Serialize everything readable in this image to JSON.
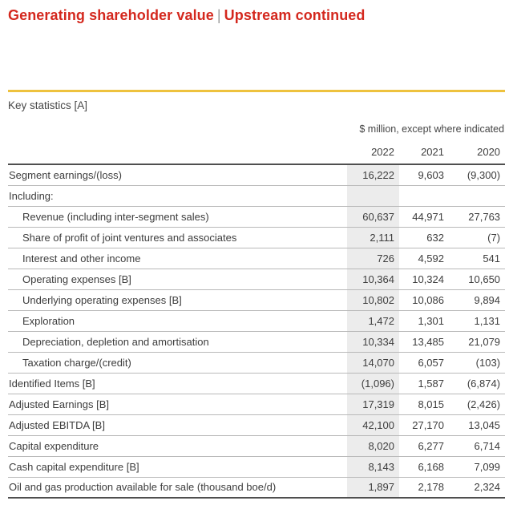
{
  "header": {
    "title_left": "Generating shareholder value",
    "separator": "|",
    "title_right": "Upstream continued"
  },
  "section": {
    "title": "Key statistics [A]"
  },
  "table": {
    "unit_note": "$ million, except where indicated",
    "columns": [
      "2022",
      "2021",
      "2020"
    ],
    "highlighted_column": "2022",
    "rows": [
      {
        "label": "Segment earnings/(loss)",
        "indent": false,
        "values": [
          "16,222",
          "9,603",
          "(9,300)"
        ]
      },
      {
        "label": "Including:",
        "indent": false,
        "values": [
          "",
          "",
          ""
        ]
      },
      {
        "label": "Revenue (including inter-segment sales)",
        "indent": true,
        "values": [
          "60,637",
          "44,971",
          "27,763"
        ]
      },
      {
        "label": "Share of profit of joint ventures and associates",
        "indent": true,
        "values": [
          "2,111",
          "632",
          "(7)"
        ]
      },
      {
        "label": "Interest and other income",
        "indent": true,
        "values": [
          "726",
          "4,592",
          "541"
        ]
      },
      {
        "label": "Operating expenses [B]",
        "indent": true,
        "values": [
          "10,364",
          "10,324",
          "10,650"
        ]
      },
      {
        "label": "Underlying operating expenses [B]",
        "indent": true,
        "values": [
          "10,802",
          "10,086",
          "9,894"
        ]
      },
      {
        "label": "Exploration",
        "indent": true,
        "values": [
          "1,472",
          "1,301",
          "1,131"
        ]
      },
      {
        "label": "Depreciation, depletion and amortisation",
        "indent": true,
        "values": [
          "10,334",
          "13,485",
          "21,079"
        ]
      },
      {
        "label": "Taxation charge/(credit)",
        "indent": true,
        "values": [
          "14,070",
          "6,057",
          "(103)"
        ]
      },
      {
        "label": "Identified Items [B]",
        "indent": false,
        "values": [
          "(1,096)",
          "1,587",
          "(6,874)"
        ]
      },
      {
        "label": "Adjusted Earnings [B]",
        "indent": false,
        "values": [
          "17,319",
          "8,015",
          "(2,426)"
        ]
      },
      {
        "label": "Adjusted EBITDA [B]",
        "indent": false,
        "values": [
          "42,100",
          "27,170",
          "13,045"
        ]
      },
      {
        "label": "Capital expenditure",
        "indent": false,
        "values": [
          "8,020",
          "6,277",
          "6,714"
        ]
      },
      {
        "label": "Cash capital expenditure [B]",
        "indent": false,
        "values": [
          "8,143",
          "6,168",
          "7,099"
        ]
      },
      {
        "label": "Oil and gas production available for sale (thousand boe/d)",
        "indent": false,
        "values": [
          "1,897",
          "2,178",
          "2,324"
        ]
      }
    ]
  },
  "colors": {
    "red": "#d4281e",
    "gold": "#eec23e",
    "shade": "#ececec",
    "ink": "#3d3d3d"
  }
}
